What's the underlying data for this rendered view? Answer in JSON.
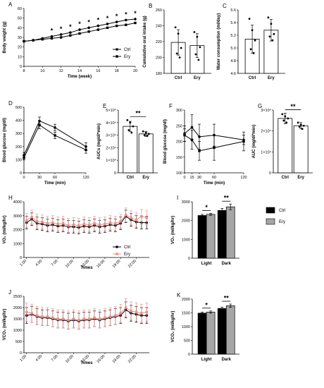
{
  "colors": {
    "ctrl": "#000000",
    "ery": "#e8908a",
    "ery_bar": "#a6a6a6"
  },
  "chart_data": [
    {
      "panel": "A",
      "type": "line",
      "xlabel": "Time (week)",
      "ylabel": "Body weight (g)",
      "xlim": [
        8,
        20
      ],
      "ylim": [
        0,
        60
      ],
      "xticks": [
        "8",
        "10",
        "12",
        "14",
        "16",
        "18",
        "20"
      ],
      "yticks": [
        "0",
        "10",
        "20",
        "30",
        "40",
        "50",
        "60"
      ],
      "legend_position": "bottom-right",
      "x": [
        8,
        9,
        10,
        11,
        12,
        13,
        14,
        15,
        16,
        17,
        18,
        19,
        20
      ],
      "series": [
        {
          "name": "Ctrl",
          "values": [
            26,
            27,
            29,
            31,
            33,
            35,
            38,
            40,
            42,
            44,
            46,
            48,
            49
          ]
        },
        {
          "name": "Ery",
          "values": [
            26,
            27,
            28,
            29,
            30,
            32,
            34,
            36,
            38,
            40,
            42,
            43,
            45
          ]
        }
      ],
      "annotations_x": [
        11,
        12,
        13,
        14,
        15,
        16,
        17,
        18,
        19,
        20
      ],
      "annotation_label": "*"
    },
    {
      "panel": "B",
      "type": "bar",
      "ylabel": "Cumulative oral intake (g)",
      "ylim": [
        180,
        260
      ],
      "yticks": [
        "180",
        "200",
        "220",
        "240",
        "260"
      ],
      "categories": [
        "Ctrl",
        "Ery"
      ],
      "values": [
        219,
        215
      ],
      "errors": [
        16,
        15
      ],
      "points": [
        [
          238,
          230,
          212,
          205,
          200
        ],
        [
          232,
          226,
          213,
          204,
          197
        ]
      ]
    },
    {
      "panel": "C",
      "type": "bar",
      "ylabel": "Water consumption (ml/day)",
      "ylim": [
        4.6,
        5.6
      ],
      "yticks": [
        "4.6",
        "4.8",
        "5.0",
        "5.2",
        "5.4",
        "5.6"
      ],
      "categories": [
        "Ctrl",
        "Ery"
      ],
      "values": [
        5.14,
        5.28
      ],
      "errors": [
        0.22,
        0.17
      ],
      "points": [
        [
          5.46,
          5.28,
          5.12,
          4.98,
          4.92
        ],
        [
          5.48,
          5.38,
          5.22,
          5.18,
          5.12
        ]
      ]
    },
    {
      "panel": "D",
      "type": "line",
      "xlabel": "Time (min)",
      "ylabel": "Blood glucose (mg/dl)",
      "xlim": [
        0,
        120
      ],
      "ylim": [
        0,
        500
      ],
      "xticks": [
        "0",
        "30",
        "60",
        "120"
      ],
      "xtick_values": [
        0,
        30,
        60,
        120
      ],
      "yticks": [
        "0",
        "100",
        "200",
        "300",
        "400",
        "500"
      ],
      "x": [
        0,
        30,
        60,
        120
      ],
      "series": [
        {
          "name": "Ctrl",
          "values": [
            135,
            395,
            345,
            200
          ],
          "errors": [
            20,
            30,
            25,
            30
          ]
        },
        {
          "name": "Ery",
          "values": [
            115,
            365,
            285,
            175
          ],
          "errors": [
            15,
            30,
            25,
            25
          ]
        }
      ]
    },
    {
      "panel": "E",
      "type": "bar",
      "ylabel": "AUCs (mg/dl*min)",
      "ylim": [
        0,
        50000
      ],
      "yticks": [
        "0",
        "1×10⁴",
        "2×10⁴",
        "3×10⁴",
        "4×10⁴",
        "5×10⁴"
      ],
      "categories": [
        "Ctrl",
        "Ery"
      ],
      "values": [
        37000,
        31000
      ],
      "errors": [
        4000,
        2000
      ],
      "points": [
        [
          42000,
          40000,
          37000,
          34000,
          32000
        ],
        [
          33000,
          32000,
          31000,
          30000,
          29500
        ]
      ],
      "significance": "**"
    },
    {
      "panel": "F",
      "type": "line",
      "xlabel": "Time (min)",
      "ylabel": "Blood glucose (mg/dl)",
      "xlim": [
        0,
        120
      ],
      "ylim": [
        100,
        300
      ],
      "xticks": [
        "0",
        "15",
        "30",
        "60",
        "120"
      ],
      "xtick_values": [
        0,
        15,
        30,
        60,
        120
      ],
      "yticks": [
        "100",
        "150",
        "200",
        "250",
        "300"
      ],
      "x": [
        0,
        15,
        30,
        60,
        120
      ],
      "series": [
        {
          "name": "Ctrl",
          "values": [
            225,
            245,
            215,
            220,
            205
          ],
          "errors": [
            25,
            40,
            40,
            35,
            15
          ]
        },
        {
          "name": "Ery",
          "values": [
            220,
            205,
            170,
            180,
            200
          ],
          "errors": [
            20,
            30,
            30,
            40,
            30
          ]
        }
      ]
    },
    {
      "panel": "G",
      "type": "bar",
      "ylabel": "AUC (mg/dl*min)",
      "ylim": [
        0,
        30000
      ],
      "yticks": [
        "0",
        "1×10⁴",
        "2×10⁴",
        "3×10⁴"
      ],
      "categories": [
        "Ctrl",
        "Ery"
      ],
      "values": [
        26000,
        22500
      ],
      "errors": [
        2500,
        1500
      ],
      "points": [
        [
          28000,
          27000,
          26000,
          25000,
          24000
        ],
        [
          24000,
          23000,
          22500,
          22000,
          21000
        ]
      ],
      "significance": "**"
    },
    {
      "panel": "H",
      "type": "line",
      "xlabel": "Times",
      "ylabel": "VO₂ (ml/kg/hr)",
      "ylim": [
        0,
        4000
      ],
      "yticks": [
        "0",
        "1000",
        "2000",
        "3000",
        "4000"
      ],
      "xticks": [
        "1:00",
        "4:00",
        "7:00",
        "10:00",
        "13:00",
        "16:00",
        "19:00",
        "22:00"
      ],
      "x": [
        1,
        2,
        3,
        4,
        5,
        6,
        7,
        8,
        9,
        10,
        11,
        12,
        13,
        14,
        15,
        16,
        17,
        18,
        19,
        20,
        21,
        22,
        23,
        24
      ],
      "series": [
        {
          "name": "Ctrl",
          "values": [
            2500,
            2750,
            2450,
            2400,
            2300,
            2350,
            2250,
            2300,
            2200,
            2200,
            2150,
            2250,
            2200,
            2300,
            2200,
            2250,
            2350,
            2300,
            2450,
            2950,
            2700,
            2550,
            2500,
            2500
          ],
          "error": 450
        },
        {
          "name": "Ery",
          "values": [
            2650,
            2900,
            2600,
            2550,
            2450,
            2500,
            2400,
            2450,
            2300,
            2350,
            2300,
            2400,
            2350,
            2450,
            2350,
            2400,
            2500,
            2450,
            2600,
            3050,
            2850,
            2700,
            2950,
            2850
          ],
          "error": 500
        }
      ],
      "legend_position": "right"
    },
    {
      "panel": "I",
      "type": "bar",
      "ylabel": "VO₂ (ml/kg/hr)",
      "ylim": [
        0,
        3000
      ],
      "yticks": [
        "0",
        "1000",
        "2000",
        "3000"
      ],
      "categories": [
        "Light",
        "Dark"
      ],
      "series": [
        {
          "name": "Ctrl",
          "values": [
            2270,
            2540
          ],
          "errors": [
            60,
            110
          ]
        },
        {
          "name": "Ery",
          "values": [
            2330,
            2730
          ],
          "errors": [
            50,
            150
          ]
        }
      ],
      "significance": [
        "*",
        "**"
      ],
      "legend_position": "right"
    },
    {
      "panel": "J",
      "type": "line",
      "xlabel": "Times",
      "ylabel": "VCO₂ (ml/kg/hr)",
      "ylim": [
        0,
        2500
      ],
      "yticks": [
        "0",
        "500",
        "1000",
        "1500",
        "2000",
        "2500"
      ],
      "xticks": [
        "1:00",
        "4:00",
        "7:00",
        "10:00",
        "13:00",
        "16:00",
        "19:00",
        "22:00"
      ],
      "x": [
        1,
        2,
        3,
        4,
        5,
        6,
        7,
        8,
        9,
        10,
        11,
        12,
        13,
        14,
        15,
        16,
        17,
        18,
        19,
        20,
        21,
        22,
        23,
        24
      ],
      "series": [
        {
          "name": "Ctrl",
          "values": [
            1650,
            1700,
            1600,
            1550,
            1550,
            1500,
            1450,
            1450,
            1400,
            1450,
            1400,
            1450,
            1450,
            1500,
            1450,
            1500,
            1550,
            1600,
            1650,
            1900,
            1750,
            1700,
            1650,
            1650
          ],
          "error": 350
        },
        {
          "name": "Ery",
          "values": [
            1800,
            1750,
            1650,
            1600,
            1600,
            1550,
            1500,
            1500,
            1450,
            1500,
            1450,
            1500,
            1500,
            1550,
            1500,
            1550,
            1600,
            1650,
            1750,
            2000,
            1850,
            1800,
            1750,
            1800
          ],
          "error": 400
        }
      ]
    },
    {
      "panel": "K",
      "type": "bar",
      "ylabel": "VCO₂ (ml/kg/hr)",
      "ylim": [
        0,
        2000
      ],
      "yticks": [
        "0",
        "500",
        "1000",
        "1500",
        "2000"
      ],
      "categories": [
        "Light",
        "Dark"
      ],
      "series": [
        {
          "name": "Ctrl",
          "values": [
            1490,
            1660
          ],
          "errors": [
            40,
            50
          ]
        },
        {
          "name": "Ery",
          "values": [
            1530,
            1760
          ],
          "errors": [
            40,
            60
          ]
        }
      ],
      "significance": [
        "*",
        "**"
      ]
    }
  ]
}
